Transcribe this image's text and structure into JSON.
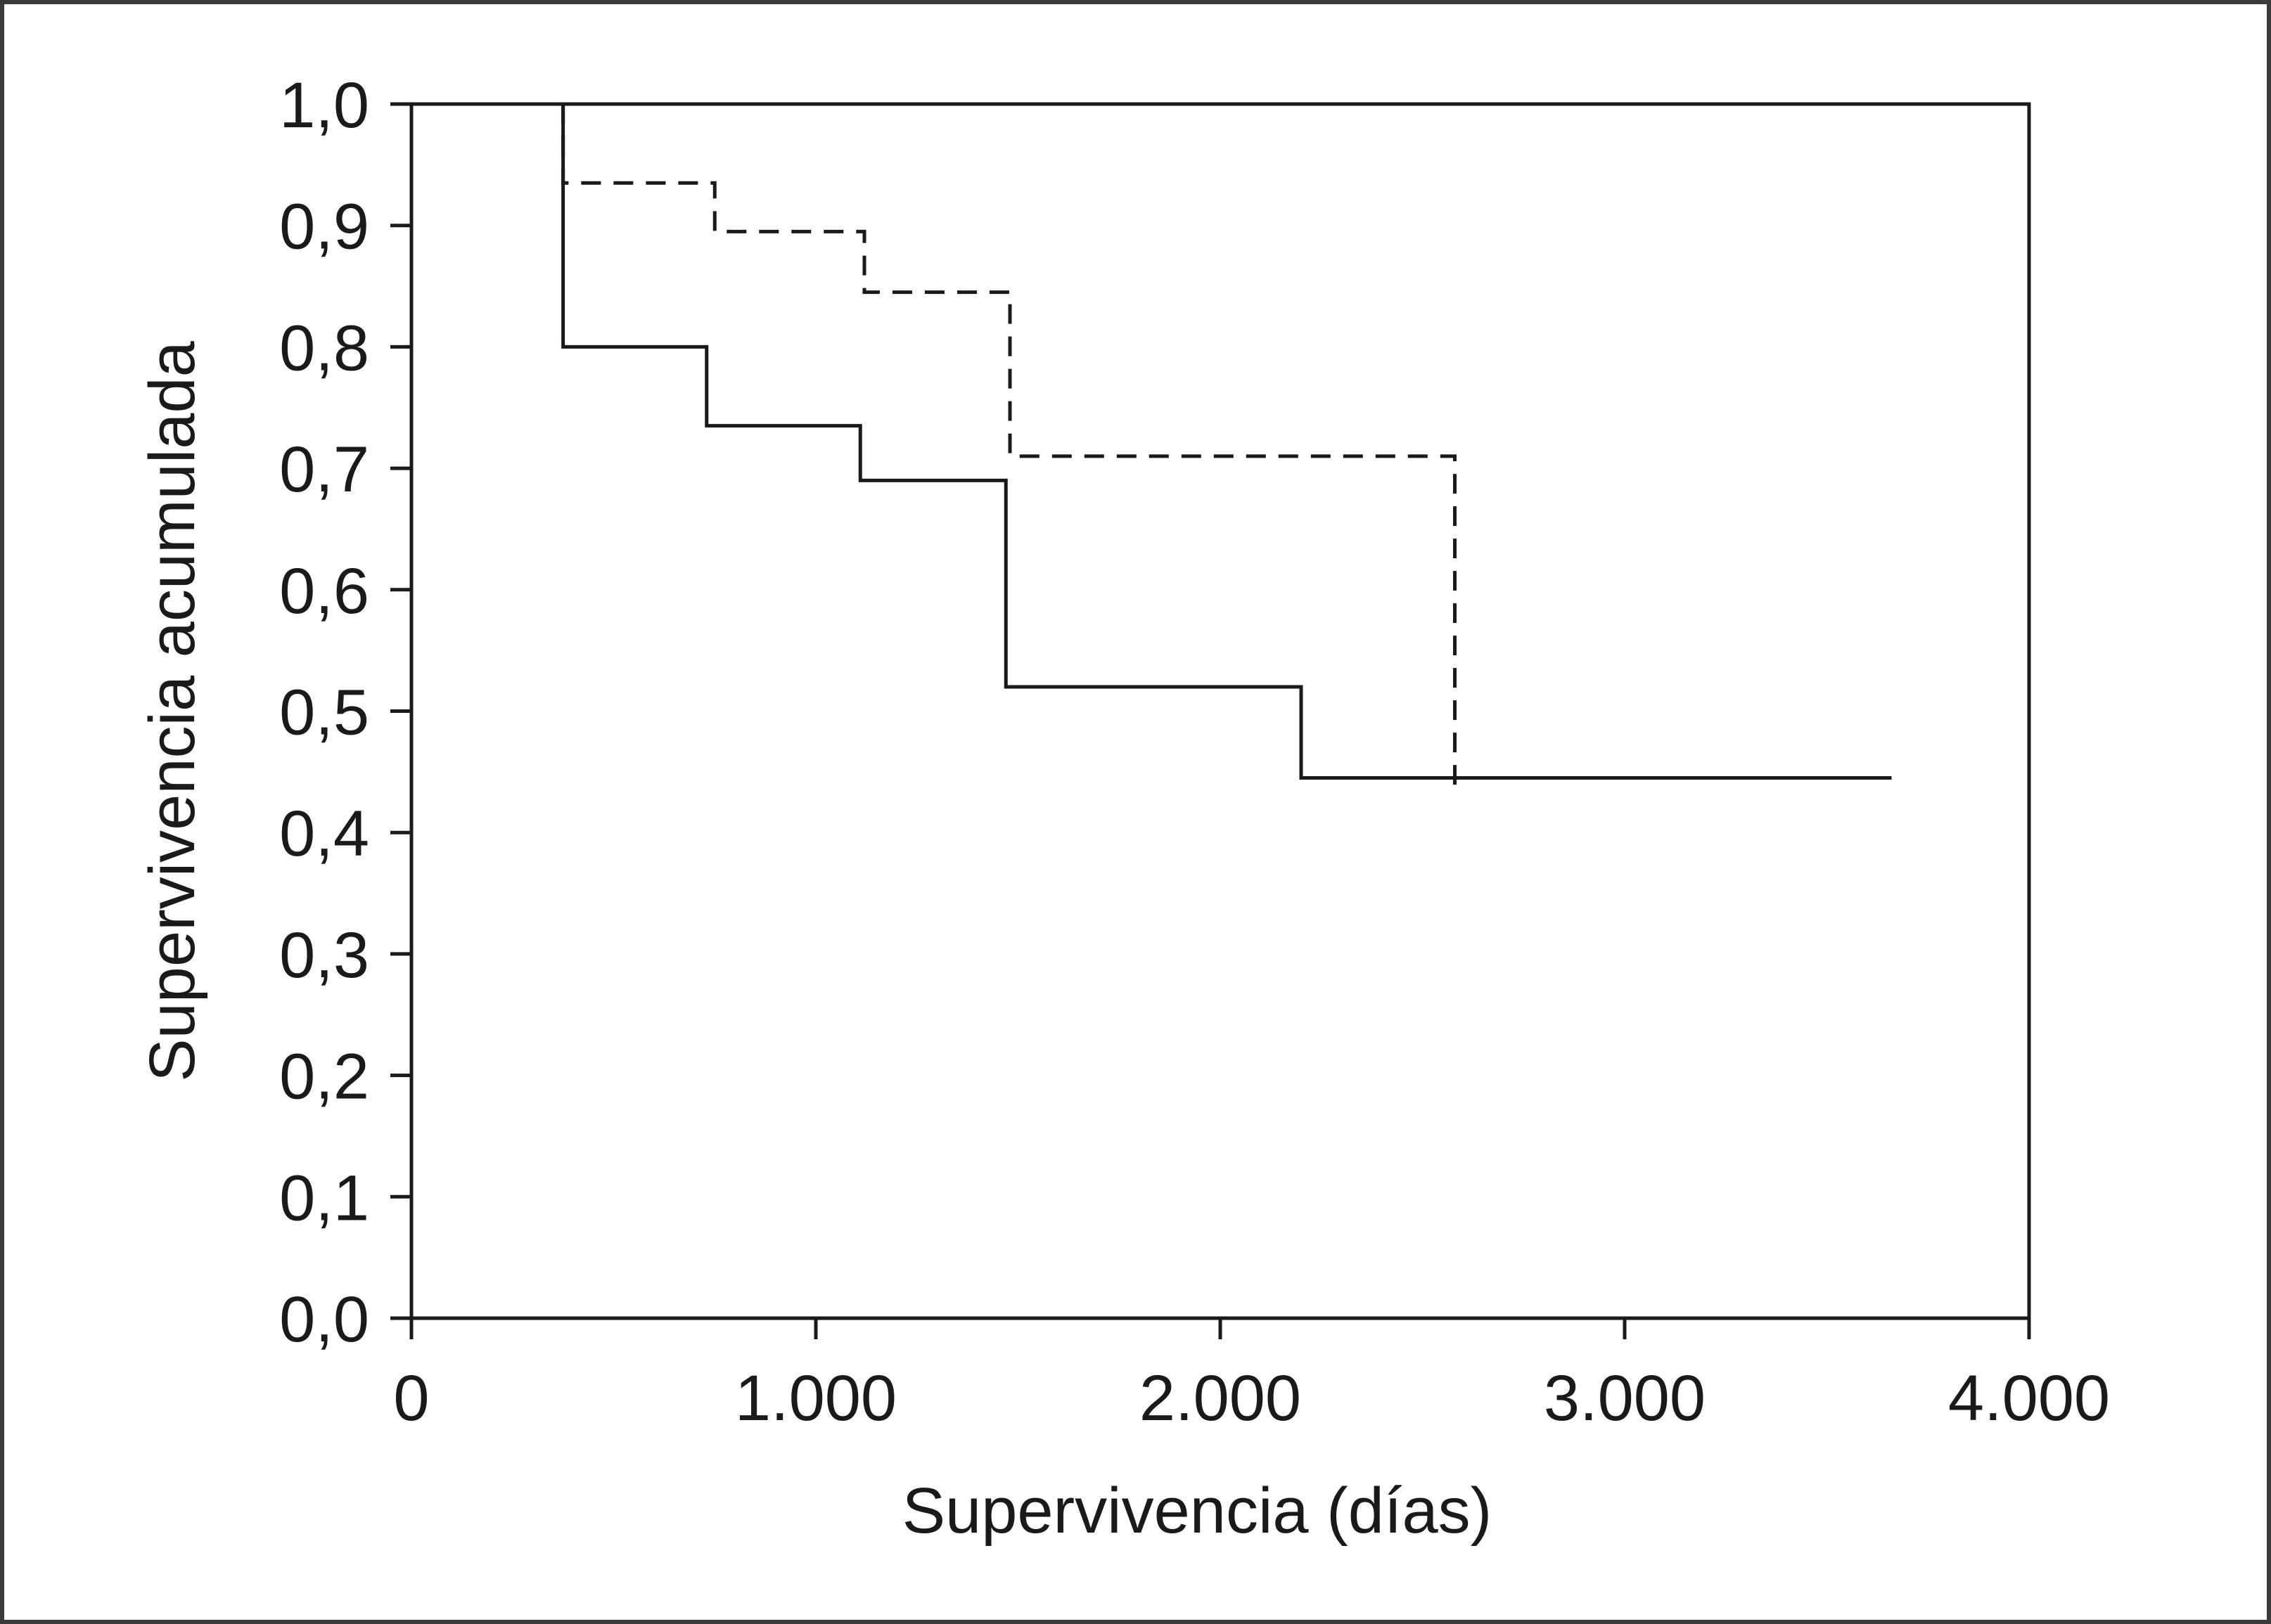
{
  "chart_data": {
    "type": "line",
    "title": "",
    "xlabel": "Supervivencia (días)",
    "ylabel": "Supervivencia acumulada",
    "xlim": [
      0,
      4000
    ],
    "ylim": [
      0,
      1.0
    ],
    "x_ticks": [
      0,
      1000,
      2000,
      3000,
      4000
    ],
    "x_tick_labels": [
      "0",
      "1.000",
      "2.000",
      "3.000",
      "4.000"
    ],
    "y_ticks": [
      0,
      0.1,
      0.2,
      0.3,
      0.4,
      0.5,
      0.6,
      0.7,
      0.8,
      0.9,
      1.0
    ],
    "y_tick_labels": [
      "0,0",
      "0,1",
      "0,2",
      "0,3",
      "0,4",
      "0,5",
      "0,6",
      "0,7",
      "0,8",
      "0,9",
      "1,0"
    ],
    "grid": false,
    "legend": "none",
    "series": [
      {
        "style": "solid",
        "step": true,
        "x": [
          375,
          730,
          1110,
          1470,
          2200,
          3660
        ],
        "y": [
          0.8,
          0.735,
          0.69,
          0.52,
          0.445,
          0.445
        ]
      },
      {
        "style": "dashed",
        "step": true,
        "x": [
          375,
          750,
          1120,
          1480,
          2580
        ],
        "y": [
          0.935,
          0.895,
          0.845,
          0.71,
          0.43
        ]
      }
    ],
    "colors": {
      "line": "#1a1a1a",
      "axis": "#1a1a1a"
    }
  }
}
